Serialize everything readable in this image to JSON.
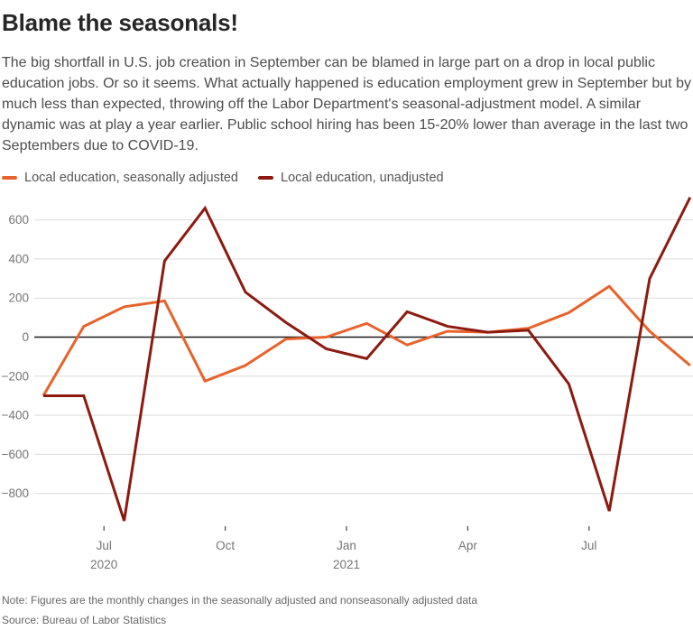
{
  "title": "Blame the seasonals!",
  "description": "The big shortfall in U.S. job creation in September can be blamed in large part on a drop in local public education jobs. Or so it seems. What actually happened is education employment grew in September but by much less than expected, throwing off the Labor Department's seasonal-adjustment model. A similar dynamic was at play a year earlier. Public school hiring has been 15-20% lower than average in the last two Septembers due to COVID-19.",
  "legend": {
    "items": [
      {
        "label": "Local education, seasonally adjusted",
        "color": "#e8632b"
      },
      {
        "label": "Local education, unadjusted",
        "color": "#8c1a10"
      }
    ]
  },
  "footer": {
    "note": "Note: Figures are the monthly changes in the seasonally adjusted and nonseasonally adjusted data",
    "source": "Source: Bureau of Labor Statistics"
  },
  "chart_data": {
    "type": "line",
    "title": "Blame the seasonals!",
    "x": [
      "May 2020",
      "Jun 2020",
      "Jul 2020",
      "Aug 2020",
      "Sep 2020",
      "Oct 2020",
      "Nov 2020",
      "Dec 2020",
      "Jan 2021",
      "Feb 2021",
      "Mar 2021",
      "Apr 2021",
      "May 2021",
      "Jun 2021",
      "Jul 2021",
      "Aug 2021",
      "Sep 2021"
    ],
    "series": [
      {
        "name": "Local education, seasonally adjusted",
        "color": "#e8632b",
        "values": [
          -300,
          55,
          155,
          185,
          -225,
          -145,
          -10,
          0,
          70,
          -40,
          30,
          25,
          45,
          125,
          260,
          30,
          -145
        ]
      },
      {
        "name": "Local education, unadjusted",
        "color": "#8c1a10",
        "values": [
          -300,
          -300,
          -940,
          390,
          660,
          230,
          75,
          -60,
          -110,
          130,
          55,
          25,
          35,
          -240,
          -890,
          300,
          715
        ]
      }
    ],
    "yticks": [
      600,
      400,
      200,
      0,
      -200,
      -400,
      -600,
      -800
    ],
    "ylim": [
      -980,
      760
    ],
    "xticks": [
      {
        "index": 2,
        "label": "Jul",
        "year": "2020"
      },
      {
        "index": 5,
        "label": "Oct",
        "year": ""
      },
      {
        "index": 8,
        "label": "Jan",
        "year": "2021"
      },
      {
        "index": 11,
        "label": "Apr",
        "year": ""
      },
      {
        "index": 14,
        "label": "Jul",
        "year": ""
      }
    ],
    "grid": "horizontal",
    "zero_line": true,
    "legend_position": "top-left"
  }
}
